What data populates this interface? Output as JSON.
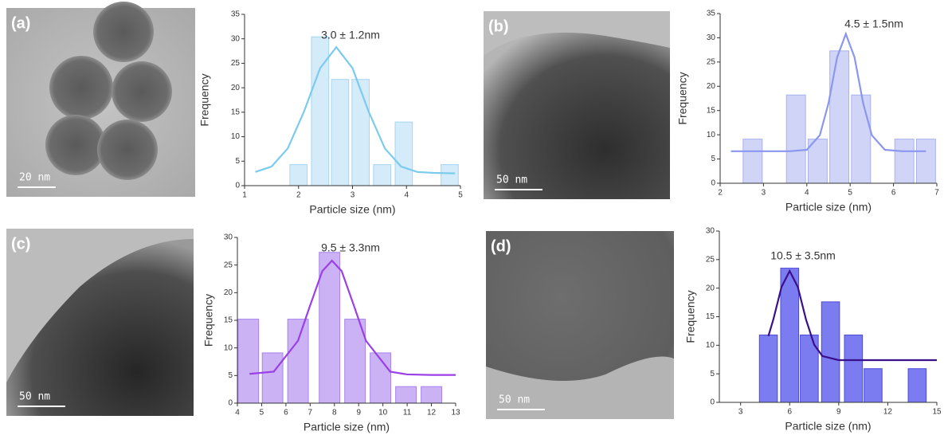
{
  "chart_data": [
    {
      "type": "bar",
      "panel_label": "(a)",
      "scale_bar": "20 nm",
      "annotation": "3.0 ± 1.2nm",
      "xlabel": "Particle size (nm)",
      "ylabel": "Frequency",
      "x": [
        2.0,
        2.4,
        2.77,
        3.15,
        3.55,
        3.95,
        4.8
      ],
      "values": [
        4.3,
        30.4,
        21.7,
        21.7,
        4.3,
        13.0,
        4.3
      ],
      "bar_width": 0.32,
      "color": "#cfe9fa",
      "edge_color": "#a6d6f3",
      "fit": {
        "color": "#7ccbee",
        "x": [
          1.2,
          1.5,
          1.8,
          2.1,
          2.4,
          2.7,
          3.0,
          3.3,
          3.6,
          3.9,
          4.2,
          4.5,
          4.9
        ],
        "values": [
          2.8,
          3.9,
          7.6,
          15.1,
          24.0,
          28.3,
          24.0,
          15.1,
          7.6,
          3.9,
          2.8,
          2.6,
          2.5
        ]
      },
      "xlim": [
        1,
        5
      ],
      "xticks": [
        1,
        2,
        3,
        4,
        5
      ],
      "ylim": [
        0,
        35
      ],
      "yticks": [
        0,
        5,
        10,
        15,
        20,
        25,
        30,
        35
      ]
    },
    {
      "type": "bar",
      "panel_label": "(b)",
      "scale_bar": "50 nm",
      "annotation": "4.5 ± 1.5nm",
      "xlabel": "Particle size (nm)",
      "ylabel": "Frequency",
      "x": [
        2.75,
        3.75,
        4.25,
        4.75,
        5.25,
        6.25,
        6.75
      ],
      "values": [
        9.1,
        18.2,
        9.1,
        27.3,
        18.2,
        9.1,
        9.1
      ],
      "bar_width": 0.44,
      "color": "#cbd0f7",
      "edge_color": "#a9b1f0",
      "fit": {
        "color": "#8b97ee",
        "x": [
          2.25,
          3.0,
          3.6,
          4.0,
          4.3,
          4.5,
          4.7,
          4.9,
          5.1,
          5.3,
          5.5,
          5.8,
          6.2,
          6.75
        ],
        "values": [
          6.6,
          6.6,
          6.6,
          6.9,
          9.9,
          16.5,
          26.0,
          30.8,
          26.0,
          16.5,
          9.9,
          6.9,
          6.6,
          6.6
        ]
      },
      "xlim": [
        2,
        7
      ],
      "xticks": [
        2,
        3,
        4,
        5,
        6,
        7
      ],
      "ylim": [
        0,
        35
      ],
      "yticks": [
        0,
        5,
        10,
        15,
        20,
        25,
        30,
        35
      ]
    },
    {
      "type": "bar",
      "panel_label": "(c)",
      "scale_bar": "50 nm",
      "annotation": "9.5 ± 3.3nm",
      "xlabel": "Particle size (nm)",
      "ylabel": "Frequency",
      "x": [
        4.45,
        5.45,
        6.5,
        7.8,
        8.85,
        9.9,
        10.95,
        12.0
      ],
      "values": [
        15.2,
        9.1,
        15.2,
        27.3,
        15.2,
        9.1,
        3.0,
        3.0
      ],
      "bar_width": 0.85,
      "color": "#c4aaf3",
      "edge_color": "#a784ec",
      "fit": {
        "color": "#9b3fe6",
        "x": [
          4.5,
          5.5,
          6.5,
          7.0,
          7.5,
          7.9,
          8.3,
          8.8,
          9.3,
          10.3,
          11.0,
          12.0,
          13.0
        ],
        "values": [
          5.3,
          5.7,
          11.3,
          17.7,
          23.9,
          25.8,
          23.9,
          17.7,
          11.3,
          5.7,
          5.2,
          5.1,
          5.1
        ]
      },
      "xlim": [
        4,
        13
      ],
      "xticks": [
        4,
        5,
        6,
        7,
        8,
        9,
        10,
        11,
        12,
        13
      ],
      "ylim": [
        0,
        30
      ],
      "yticks": [
        0,
        5,
        10,
        15,
        20,
        25,
        30
      ]
    },
    {
      "type": "bar",
      "panel_label": "(d)",
      "scale_bar": "50 nm",
      "annotation": "10.5 ± 3.5nm",
      "xlabel": "Particle size (nm)",
      "ylabel": "Frequency",
      "x": [
        4.7,
        6.0,
        7.2,
        8.5,
        9.9,
        11.1,
        13.8
      ],
      "values": [
        11.8,
        23.5,
        11.8,
        17.6,
        11.8,
        5.9,
        5.9
      ],
      "bar_width": 1.1,
      "color": "#6e6ef0",
      "edge_color": "#4b4bd8",
      "fit": {
        "color": "#3a0f8a",
        "x": [
          4.7,
          5.0,
          5.5,
          6.0,
          6.5,
          7.0,
          7.5,
          8.0,
          9.0,
          12.0,
          15.0
        ],
        "values": [
          11.6,
          14.5,
          20.2,
          23.0,
          20.2,
          14.5,
          10.1,
          8.1,
          7.4,
          7.4,
          7.4
        ]
      },
      "xlim": [
        1.7,
        15
      ],
      "xticks": [
        3,
        6,
        9,
        12,
        15
      ],
      "ylim": [
        0,
        30
      ],
      "yticks": [
        0,
        5,
        10,
        15,
        20,
        25,
        30
      ]
    }
  ]
}
